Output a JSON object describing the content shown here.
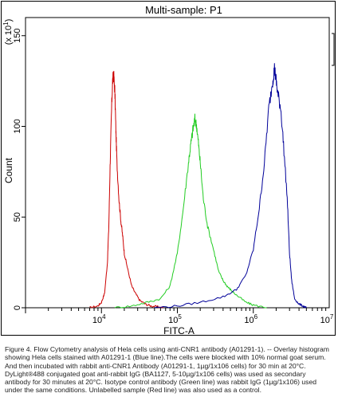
{
  "chart_data": {
    "type": "line",
    "title": "Multi-sample: P1",
    "xlabel": "FITC-A",
    "ylabel": "Count",
    "y_multiplier_label": "(x 10^1)",
    "x_scale": "log",
    "xlim": [
      1000,
      10000000
    ],
    "ylim": [
      0,
      160
    ],
    "x_tick_labels": [
      "10^4",
      "10^5",
      "10^6",
      "10^7"
    ],
    "y_ticks": [
      0,
      50,
      100,
      150
    ],
    "series": [
      {
        "color": "#cc0000",
        "x": [
          7000,
          9000,
          10000,
          11000,
          12000,
          12500,
          13000,
          13500,
          14000,
          14500,
          15000,
          15500,
          16000,
          17000,
          18000,
          19000,
          20000,
          22000,
          25000,
          28000,
          32000,
          38000,
          45000,
          55000,
          65000
        ],
        "y": [
          0,
          1,
          3,
          8,
          25,
          45,
          78,
          105,
          125,
          128,
          120,
          98,
          80,
          60,
          48,
          40,
          30,
          22,
          12,
          8,
          4,
          2,
          1,
          0.5,
          0
        ]
      },
      {
        "color": "#22cc22",
        "x": [
          15000,
          25000,
          40000,
          60000,
          80000,
          100000,
          120000,
          140000,
          150000,
          160000,
          170000,
          180000,
          190000,
          200000,
          220000,
          250000,
          300000,
          350000,
          400000,
          450000,
          500000,
          600000,
          800000,
          1000000,
          1500000
        ],
        "y": [
          0,
          1,
          3,
          5,
          12,
          30,
          55,
          80,
          90,
          98,
          104,
          100,
          90,
          80,
          60,
          45,
          32,
          20,
          15,
          12,
          10,
          7,
          3,
          1.5,
          0
        ]
      },
      {
        "color": "#000099",
        "x": [
          50000,
          100000,
          200000,
          400000,
          600000,
          800000,
          1000000,
          1200000,
          1400000,
          1600000,
          1800000,
          1900000,
          2000000,
          2100000,
          2300000,
          2500000,
          2800000,
          3000000,
          3200000,
          3500000,
          4000000,
          4500000,
          5000000
        ],
        "y": [
          0,
          1,
          3,
          6,
          10,
          18,
          32,
          55,
          80,
          110,
          125,
          132,
          125,
          118,
          110,
          90,
          60,
          30,
          15,
          5,
          2,
          1,
          0
        ]
      }
    ]
  },
  "caption": {
    "text": "Figure 4. Flow Cytometry analysis of Hela cells using anti-CNR1 antibody (A01291-1). -- Overlay histogram showing Hela cells stained with A01291-1 (Blue line).The cells were blocked with 10% normal goat serum. And then incubated with rabbit anti-CNR1 Antibody (A01291-1, 1µg/1x106 cells) for 30 min at 20°C. DyLight®488 conjugated goat anti-rabbit IgG (BA1127, 5-10µg/1x106 cells) was used as secondary antibody for 30 minutes at 20°C. Isotype control antibody (Green line) was rabbit IgG (1µg/1x106) used under the same conditions. Unlabelled sample (Red line) was also used as a control."
  }
}
